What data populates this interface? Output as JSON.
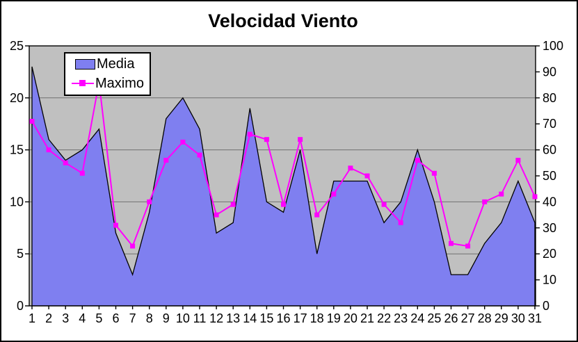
{
  "chart_data": {
    "type": "area",
    "title": "Velocidad Viento",
    "categories": [
      1,
      2,
      3,
      4,
      5,
      6,
      7,
      8,
      9,
      10,
      11,
      12,
      13,
      14,
      15,
      16,
      17,
      18,
      19,
      20,
      21,
      22,
      23,
      24,
      25,
      26,
      27,
      28,
      29,
      30,
      31
    ],
    "series": [
      {
        "name": "Media",
        "type": "area",
        "axis": "left",
        "values": [
          23,
          16,
          14,
          15,
          17,
          7,
          3,
          9,
          18,
          20,
          17,
          7,
          8,
          19,
          10,
          9,
          15,
          5,
          12,
          12,
          12,
          8,
          10,
          15,
          10,
          3,
          3,
          6,
          8,
          12,
          8
        ]
      },
      {
        "name": "Maximo",
        "type": "line",
        "axis": "right",
        "marker": "square",
        "values": [
          71,
          60,
          55,
          51,
          86,
          31,
          23,
          40,
          56,
          63,
          58,
          35,
          39,
          66,
          64,
          39,
          64,
          35,
          43,
          53,
          50,
          39,
          32,
          56,
          51,
          24,
          23,
          40,
          43,
          56,
          42
        ]
      }
    ],
    "left_axis": {
      "min": 0,
      "max": 25,
      "step": 5,
      "ticks": [
        0,
        5,
        10,
        15,
        20,
        25
      ]
    },
    "right_axis": {
      "min": 0,
      "max": 100,
      "step": 10,
      "ticks": [
        0,
        10,
        20,
        30,
        40,
        50,
        60,
        70,
        80,
        90,
        100
      ]
    },
    "grid": "on",
    "legend_position": "top-left-inside",
    "colors": {
      "media_fill": "#7F7FF0",
      "media_outline": "#000000",
      "maximo_line": "#FF00FF",
      "plot_bg": "#C0C0C0",
      "grid": "#707070",
      "axis": "#000000",
      "text": "#000000"
    }
  }
}
